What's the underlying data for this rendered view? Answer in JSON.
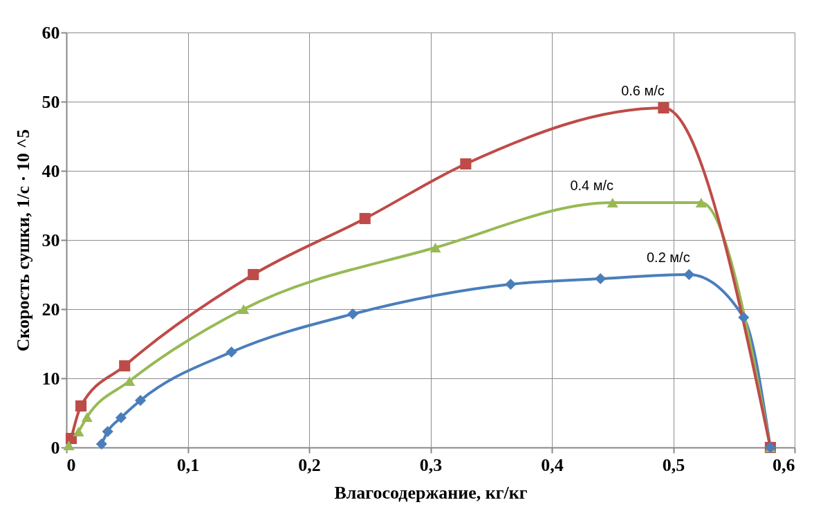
{
  "chart_data": {
    "type": "line",
    "xlabel": "Влагосодержание, кг/кг",
    "ylabel": "Скорость сушки, 1/с · 10 ^5",
    "xlim": [
      0,
      0.6
    ],
    "xticks": [
      0,
      {
        "value": 0.1,
        "label": "0,1"
      },
      {
        "value": 0.2,
        "label": "0,2"
      },
      {
        "value": 0.3,
        "label": "0,3"
      },
      {
        "value": 0.4,
        "label": "0,4"
      },
      {
        "value": 0.5,
        "label": "0,5"
      },
      {
        "value": 0.6,
        "label": "0,6"
      }
    ],
    "ylim": [
      0,
      60
    ],
    "yticks": [
      0,
      10,
      20,
      30,
      40,
      50,
      60
    ],
    "grid": true,
    "series": [
      {
        "name": "0.2 м/с",
        "color": "#4a7ebb",
        "marker": "diamond",
        "x": [
          0.029,
          0.034,
          0.045,
          0.061,
          0.136,
          0.236,
          0.366,
          0.44,
          0.513,
          0.558,
          0.58
        ],
        "values": [
          0.5,
          2.3,
          4.3,
          6.8,
          13.8,
          19.3,
          23.6,
          24.4,
          25.0,
          18.8,
          0
        ]
      },
      {
        "name": "0.4 м/с",
        "color": "#98b954",
        "marker": "triangle",
        "x": [
          0.002,
          0.01,
          0.017,
          0.052,
          0.146,
          0.304,
          0.45,
          0.523,
          0.58
        ],
        "values": [
          0.3,
          2.3,
          4.4,
          9.6,
          20,
          28.9,
          35.4,
          35.4,
          0
        ]
      },
      {
        "name": "0.6 м/с",
        "color": "#be4b48",
        "marker": "square",
        "x": [
          0.004,
          0.012,
          0.048,
          0.154,
          0.246,
          0.329,
          0.492,
          0.58
        ],
        "values": [
          1.3,
          6.0,
          11.8,
          25,
          33.1,
          41,
          49.1,
          0
        ]
      }
    ]
  }
}
